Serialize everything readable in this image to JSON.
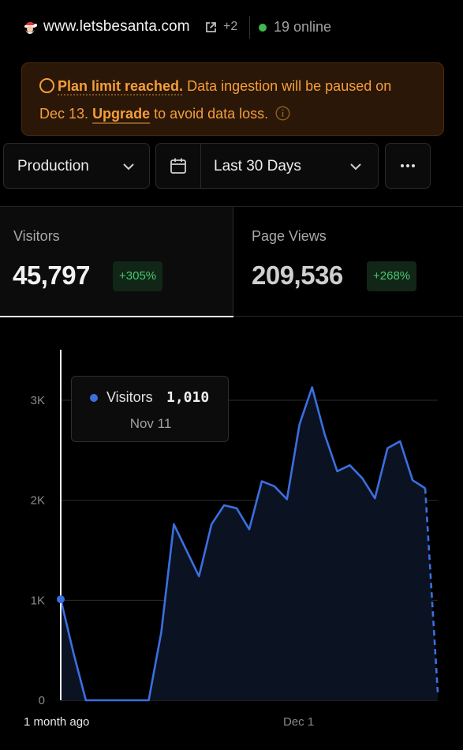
{
  "header": {
    "site_name": "www.letsbesanta.com",
    "extra_sites": "+2",
    "online_text": "19 online"
  },
  "banner": {
    "title": "Plan limit reached.",
    "message_part1": "Data ingestion will be paused on",
    "message_part2": "Dec 13.",
    "upgrade_label": "Upgrade",
    "message_part3": "to avoid data loss."
  },
  "controls": {
    "environment": "Production",
    "date_range": "Last 30 Days"
  },
  "stats": {
    "visitors": {
      "label": "Visitors",
      "value": "45,797",
      "change": "+305%"
    },
    "page_views": {
      "label": "Page Views",
      "value": "209,536",
      "change": "+268%"
    }
  },
  "tooltip": {
    "series": "Visitors",
    "value": "1,010",
    "date": "Nov 11"
  },
  "colors": {
    "accent": "#3b6fe0",
    "warning": "#f59e3a",
    "positive": "#48c774"
  },
  "chart_data": {
    "type": "area",
    "series": [
      {
        "name": "Visitors",
        "values": [
          1010,
          480,
          0,
          0,
          0,
          0,
          0,
          0,
          680,
          1760,
          1500,
          1240,
          1760,
          1950,
          1920,
          1710,
          2190,
          2140,
          2010,
          2760,
          3130,
          2660,
          2290,
          2350,
          2220,
          2020,
          2520,
          2590,
          2200,
          2120,
          80
        ]
      }
    ],
    "x_labels": [
      "1 month ago",
      "Dec 1"
    ],
    "y_ticks": [
      "0",
      "1K",
      "2K",
      "3K"
    ],
    "ylim": [
      0,
      3000
    ],
    "grid": true,
    "last_segment_dashed": true
  }
}
